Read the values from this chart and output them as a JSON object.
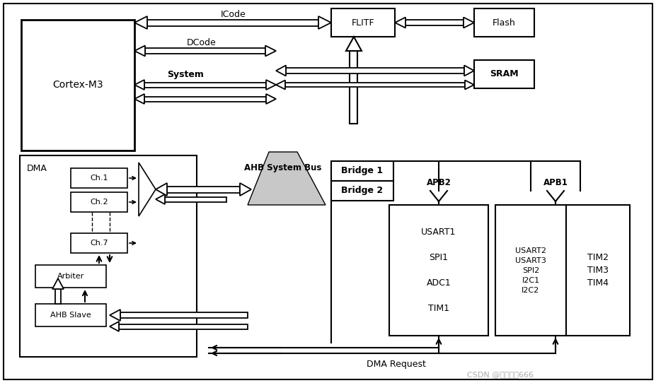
{
  "fig_w": 9.27,
  "fig_h": 5.42,
  "watermark": "CSDN @物联技术666",
  "wm_color": "#aaaaaa",
  "boxes": {
    "cortex": [
      30,
      28,
      160,
      185,
      "Cortex-M3",
      10,
      false,
      2.0
    ],
    "flitf": [
      468,
      12,
      90,
      40,
      "FLITF",
      9,
      false,
      1.5
    ],
    "flash": [
      670,
      12,
      85,
      40,
      "Flash",
      9,
      false,
      1.5
    ],
    "sram": [
      670,
      85,
      85,
      40,
      "SRAM",
      9,
      true,
      1.5
    ],
    "bridge1": [
      468,
      228,
      88,
      28,
      "Bridge 1",
      9,
      true,
      1.5
    ],
    "bridge2": [
      468,
      256,
      88,
      28,
      "Bridge 2",
      9,
      true,
      1.5
    ],
    "apb2_box": [
      550,
      290,
      140,
      185,
      "USART1\n\nSPI1\n\nADC1\n\nTIM1",
      9,
      false,
      1.5
    ],
    "apb1_box": [
      700,
      290,
      100,
      185,
      "USART2\nUSART3\nSPI2\nI2C1\nI2C2",
      8,
      false,
      1.5
    ],
    "tim_box": [
      800,
      290,
      90,
      185,
      "TIM2\nTIM3\nTIM4",
      9,
      false,
      1.5
    ],
    "dma_outer": [
      28,
      220,
      250,
      285,
      "",
      9,
      false,
      1.5
    ],
    "ch1": [
      100,
      238,
      80,
      28,
      "Ch.1",
      8,
      false,
      1.2
    ],
    "ch2": [
      100,
      272,
      80,
      28,
      "Ch.2",
      8,
      false,
      1.2
    ],
    "ch7": [
      100,
      330,
      80,
      28,
      "Ch.7",
      8,
      false,
      1.2
    ],
    "arbiter": [
      50,
      375,
      100,
      32,
      "Arbiter",
      8,
      false,
      1.2
    ],
    "ahb_slave": [
      50,
      430,
      100,
      32,
      "AHB Slave",
      8,
      false,
      1.2
    ]
  }
}
